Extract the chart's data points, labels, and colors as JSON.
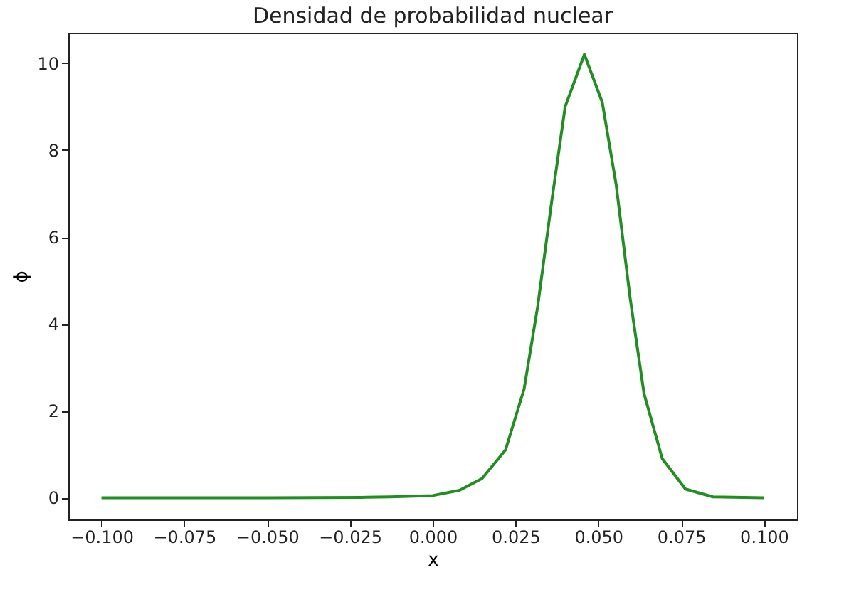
{
  "chart_data": {
    "type": "line",
    "title": "Densidad de probabilidad nuclear",
    "xlabel": "x",
    "ylabel": "ϕ",
    "x": [
      -0.1,
      -0.05,
      -0.02,
      -0.0128,
      0.0,
      0.0081,
      0.0149,
      0.022,
      0.0276,
      0.0317,
      0.0359,
      0.04,
      0.0458,
      0.0512,
      0.0554,
      0.0596,
      0.0638,
      0.0693,
      0.0763,
      0.0846,
      0.1
    ],
    "series": [
      {
        "color": "#1f8f1f",
        "values": [
          0,
          0,
          0.01,
          0.02,
          0.05,
          0.17,
          0.44,
          1.1,
          2.5,
          4.4,
          6.8,
          9.0,
          10.2,
          9.1,
          7.2,
          4.6,
          2.4,
          0.9,
          0.2,
          0.02,
          0
        ]
      }
    ],
    "xlim": [
      -0.11,
      0.11
    ],
    "ylim": [
      -0.5,
      10.7
    ],
    "xticks": [
      {
        "value": -0.1,
        "label": "−0.100"
      },
      {
        "value": -0.075,
        "label": "−0.075"
      },
      {
        "value": -0.05,
        "label": "−0.050"
      },
      {
        "value": -0.025,
        "label": "−0.025"
      },
      {
        "value": 0,
        "label": "0.000"
      },
      {
        "value": 0.025,
        "label": "0.025"
      },
      {
        "value": 0.05,
        "label": "0.050"
      },
      {
        "value": 0.075,
        "label": "0.075"
      },
      {
        "value": 0.1,
        "label": "0.100"
      }
    ],
    "yticks": [
      0,
      2,
      4,
      6,
      8,
      10
    ],
    "grid": false,
    "marker": "none"
  }
}
